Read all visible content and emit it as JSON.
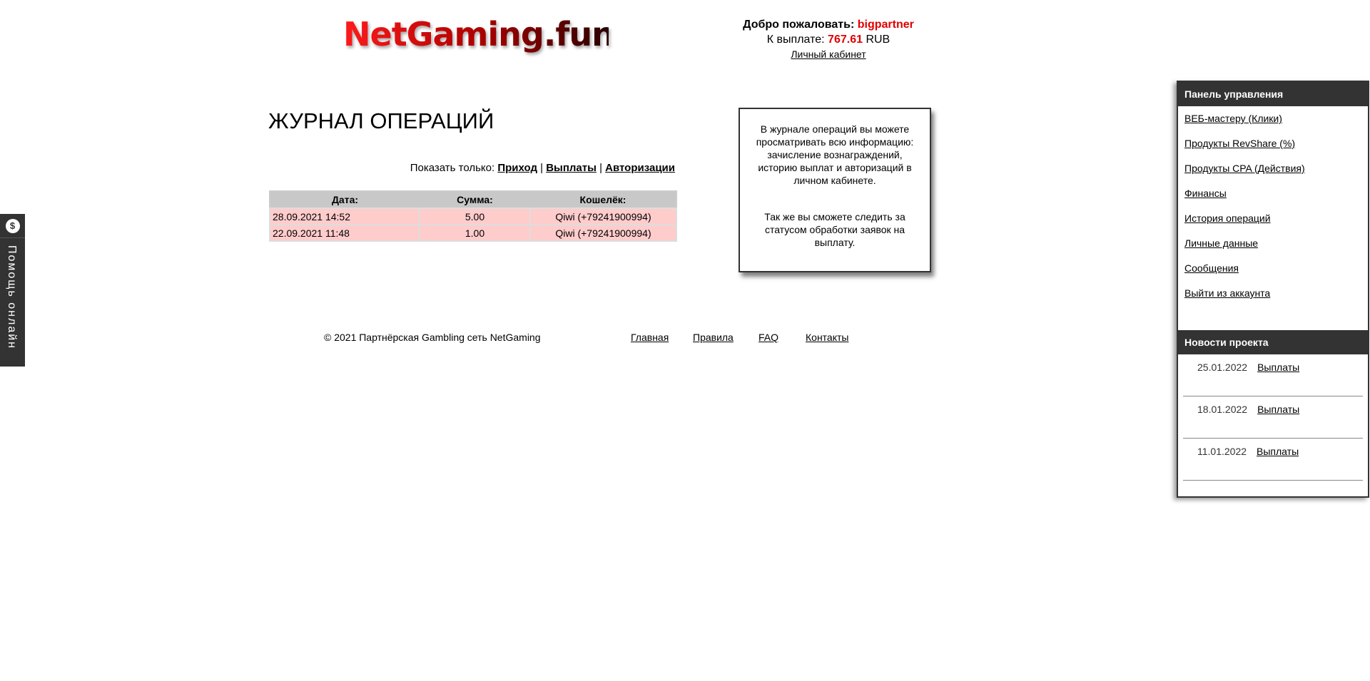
{
  "header": {
    "logo": "NetGaming.fun",
    "welcome_label": "Добро пожаловать:",
    "username": "bigpartner",
    "payout_label": "К выплате:",
    "payout_amount": "767.61",
    "currency": "RUB",
    "cabinet_link": "Личный кабинет"
  },
  "main": {
    "title": "ЖУРНАЛ ОПЕРАЦИЙ",
    "filter_label": "Показать только:",
    "filters": [
      "Приход",
      "Выплаты",
      "Авторизации"
    ],
    "table": {
      "headers": [
        "Дата:",
        "Сумма:",
        "Кошелёк:"
      ],
      "rows": [
        [
          "28.09.2021 14:52",
          "5.00",
          "Qiwi (+79241900994)"
        ],
        [
          "22.09.2021 11:48",
          "1.00",
          "Qiwi (+79241900994)"
        ]
      ]
    }
  },
  "info": {
    "p1": "В журнале операций вы можете просматривать всю информацию: зачисление вознаграждений, историю выплат и авторизаций в личном кабинете.",
    "p2": "Так же вы сможете следить за статусом обработки заявок на выплату."
  },
  "footer": {
    "copyright": "© 2021 Партнёрская Gambling сеть NetGaming",
    "links": [
      "Главная",
      "Правила",
      "FAQ",
      "Контакты"
    ]
  },
  "panel": {
    "title": "Панель управления",
    "items": [
      "ВЕБ-мастеру (Клики)",
      "Продукты RevShare (%)",
      "Продукты CPA (Действия)",
      "Финансы",
      "История операций",
      "Личные данные",
      "Сообщения",
      "Выйти из аккаунта"
    ]
  },
  "news": {
    "title": "Новости проекта",
    "items": [
      {
        "date": "25.01.2022",
        "link": "Выплаты"
      },
      {
        "date": "18.01.2022",
        "link": "Выплаты"
      },
      {
        "date": "11.01.2022",
        "link": "Выплаты"
      }
    ]
  },
  "help": {
    "label": "Помощь онлайн",
    "icon": "dollar-chat-icon"
  },
  "colors": {
    "accent": "#e00000",
    "row": "#ffcccc",
    "header": "#c8c8c8",
    "panel": "#333333"
  }
}
